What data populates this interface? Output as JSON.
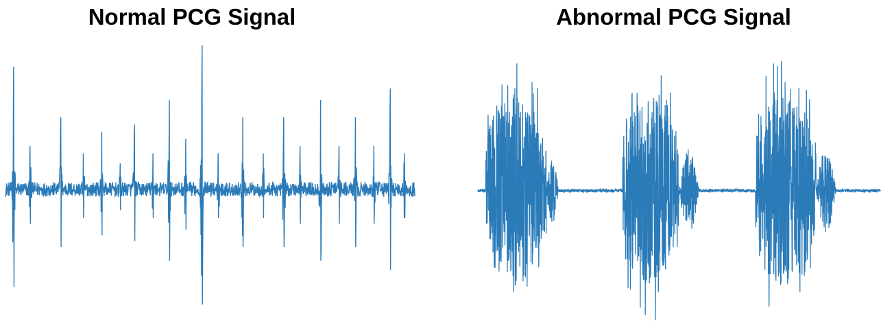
{
  "chart_data": [
    {
      "type": "line",
      "title": "Normal PCG Signal",
      "xlabel": "",
      "ylabel": "",
      "grid": false,
      "axes_visible": false,
      "color": "#2b7bb9",
      "ylim": [
        -1,
        1
      ],
      "baseline_noise": 0.05,
      "beats": [
        {
          "x": 0.02,
          "amp": 0.85
        },
        {
          "x": 0.06,
          "amp": 0.3
        },
        {
          "x": 0.135,
          "amp": 0.5
        },
        {
          "x": 0.19,
          "amp": 0.25
        },
        {
          "x": 0.235,
          "amp": 0.4
        },
        {
          "x": 0.28,
          "amp": 0.18
        },
        {
          "x": 0.315,
          "amp": 0.45
        },
        {
          "x": 0.36,
          "amp": 0.25
        },
        {
          "x": 0.4,
          "amp": 0.62
        },
        {
          "x": 0.44,
          "amp": 0.35
        },
        {
          "x": 0.48,
          "amp": 1.0
        },
        {
          "x": 0.52,
          "amp": 0.25
        },
        {
          "x": 0.58,
          "amp": 0.5
        },
        {
          "x": 0.63,
          "amp": 0.25
        },
        {
          "x": 0.68,
          "amp": 0.5
        },
        {
          "x": 0.72,
          "amp": 0.3
        },
        {
          "x": 0.77,
          "amp": 0.62
        },
        {
          "x": 0.815,
          "amp": 0.3
        },
        {
          "x": 0.855,
          "amp": 0.5
        },
        {
          "x": 0.9,
          "amp": 0.3
        },
        {
          "x": 0.94,
          "amp": 0.7
        },
        {
          "x": 0.975,
          "amp": 0.25
        }
      ]
    },
    {
      "type": "line",
      "title": "Abnormal PCG Signal",
      "xlabel": "",
      "ylabel": "",
      "grid": false,
      "axes_visible": false,
      "color": "#2b7bb9",
      "ylim": [
        -1,
        1
      ],
      "baseline_noise": 0.01,
      "bursts": [
        {
          "start": 0.02,
          "end": 0.17,
          "amp": 0.95,
          "tail_end": 0.2,
          "tail_amp": 0.25
        },
        {
          "start": 0.36,
          "end": 0.5,
          "amp": 0.95,
          "tail_end": 0.55,
          "tail_amp": 0.3
        },
        {
          "start": 0.69,
          "end": 0.84,
          "amp": 0.98,
          "tail_end": 0.89,
          "tail_amp": 0.3
        }
      ]
    }
  ]
}
